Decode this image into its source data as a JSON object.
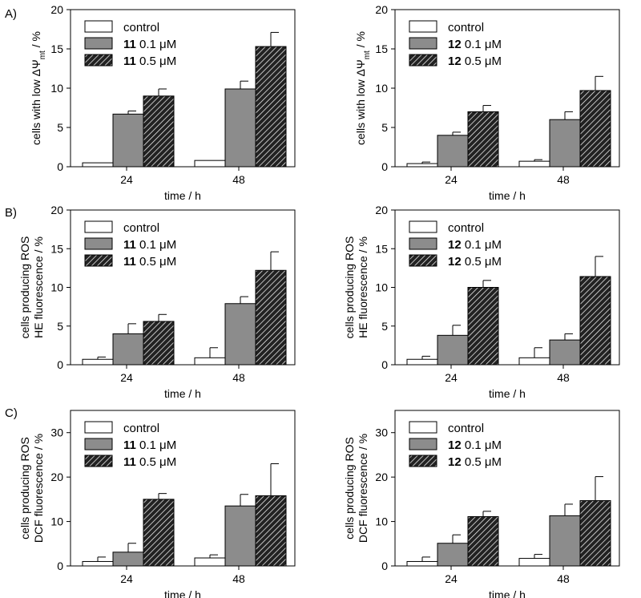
{
  "panel_labels": [
    "A)",
    "B)",
    "C)"
  ],
  "legend_common": {
    "control": "control",
    "unit": "μM"
  },
  "chart_data": [
    {
      "type": "bar",
      "panel": "A)",
      "compound": "11",
      "title": "",
      "xlabel": "time / h",
      "ylabel": {
        "lines": [
          "cells with low ΔΨmt / %"
        ],
        "prefix": "cells with low ΔΨ",
        "sub": "mt",
        "suffix": " / %"
      },
      "ylim": [
        0,
        20
      ],
      "yticks": [
        0,
        5,
        10,
        15,
        20
      ],
      "categories": [
        "24",
        "48"
      ],
      "series": [
        {
          "name": "control",
          "label": "control",
          "dose": "",
          "values": [
            0.5,
            0.8
          ],
          "errors": [
            0,
            0
          ]
        },
        {
          "name": "11 0.1 μM",
          "label": "11",
          "dose": "0.1",
          "values": [
            6.7,
            9.9
          ],
          "errors": [
            0.4,
            1.0
          ]
        },
        {
          "name": "11 0.5 μM",
          "label": "11",
          "dose": "0.5",
          "values": [
            9.0,
            15.3
          ],
          "errors": [
            0.9,
            1.8
          ]
        }
      ],
      "legend_position": "top-left"
    },
    {
      "type": "bar",
      "panel": "",
      "compound": "12",
      "title": "",
      "xlabel": "time / h",
      "ylabel": {
        "lines": [
          "cells with low ΔΨmt / %"
        ],
        "prefix": "cells with low ΔΨ",
        "sub": "mt",
        "suffix": " / %"
      },
      "ylim": [
        0,
        20
      ],
      "yticks": [
        0,
        5,
        10,
        15,
        20
      ],
      "categories": [
        "24",
        "48"
      ],
      "series": [
        {
          "name": "control",
          "label": "control",
          "dose": "",
          "values": [
            0.4,
            0.7
          ],
          "errors": [
            0.2,
            0.2
          ]
        },
        {
          "name": "12 0.1 μM",
          "label": "12",
          "dose": "0.1",
          "values": [
            4.0,
            6.0
          ],
          "errors": [
            0.4,
            1.0
          ]
        },
        {
          "name": "12 0.5 μM",
          "label": "12",
          "dose": "0.5",
          "values": [
            7.0,
            9.7
          ],
          "errors": [
            0.8,
            1.8
          ]
        }
      ],
      "legend_position": "top-left"
    },
    {
      "type": "bar",
      "panel": "B)",
      "compound": "11",
      "title": "",
      "xlabel": "time / h",
      "ylabel": {
        "lines": [
          "cells producing ROS",
          "HE fluorescence / %"
        ]
      },
      "ylim": [
        0,
        20
      ],
      "yticks": [
        0,
        5,
        10,
        15,
        20
      ],
      "categories": [
        "24",
        "48"
      ],
      "series": [
        {
          "name": "control",
          "label": "control",
          "dose": "",
          "values": [
            0.7,
            0.9
          ],
          "errors": [
            0.3,
            1.3
          ]
        },
        {
          "name": "11 0.1 μM",
          "label": "11",
          "dose": "0.1",
          "values": [
            4.0,
            7.9
          ],
          "errors": [
            1.3,
            0.9
          ]
        },
        {
          "name": "11 0.5 μM",
          "label": "11",
          "dose": "0.5",
          "values": [
            5.6,
            12.2
          ],
          "errors": [
            0.9,
            2.4
          ]
        }
      ],
      "legend_position": "top-left"
    },
    {
      "type": "bar",
      "panel": "",
      "compound": "12",
      "title": "",
      "xlabel": "time / h",
      "ylabel": {
        "lines": [
          "cells producing ROS",
          "HE fluorescence / %"
        ]
      },
      "ylim": [
        0,
        20
      ],
      "yticks": [
        0,
        5,
        10,
        15,
        20
      ],
      "categories": [
        "24",
        "48"
      ],
      "series": [
        {
          "name": "control",
          "label": "control",
          "dose": "",
          "values": [
            0.7,
            0.9
          ],
          "errors": [
            0.4,
            1.3
          ]
        },
        {
          "name": "12 0.1 μM",
          "label": "12",
          "dose": "0.1",
          "values": [
            3.8,
            3.2
          ],
          "errors": [
            1.3,
            0.8
          ]
        },
        {
          "name": "12 0.5 μM",
          "label": "12",
          "dose": "0.5",
          "values": [
            10.0,
            11.4
          ],
          "errors": [
            0.9,
            2.6
          ]
        }
      ],
      "legend_position": "top-left"
    },
    {
      "type": "bar",
      "panel": "C)",
      "compound": "11",
      "title": "",
      "xlabel": "time / h",
      "ylabel": {
        "lines": [
          "cells producing ROS",
          "DCF fluorescence / %"
        ]
      },
      "ylim": [
        0,
        35
      ],
      "yticks": [
        0,
        10,
        20,
        30
      ],
      "categories": [
        "24",
        "48"
      ],
      "series": [
        {
          "name": "control",
          "label": "control",
          "dose": "",
          "values": [
            1.0,
            1.8
          ],
          "errors": [
            1.0,
            0.7
          ]
        },
        {
          "name": "11 0.1 μM",
          "label": "11",
          "dose": "0.1",
          "values": [
            3.1,
            13.5
          ],
          "errors": [
            2.0,
            2.6
          ]
        },
        {
          "name": "11 0.5 μM",
          "label": "11",
          "dose": "0.5",
          "values": [
            15.0,
            15.8
          ],
          "errors": [
            1.3,
            7.2
          ]
        }
      ],
      "legend_position": "top-left"
    },
    {
      "type": "bar",
      "panel": "",
      "compound": "12",
      "title": "",
      "xlabel": "time / h",
      "ylabel": {
        "lines": [
          "cells producing ROS",
          "DCF fluorescence / %"
        ]
      },
      "ylim": [
        0,
        35
      ],
      "yticks": [
        0,
        10,
        20,
        30
      ],
      "categories": [
        "24",
        "48"
      ],
      "series": [
        {
          "name": "control",
          "label": "control",
          "dose": "",
          "values": [
            1.0,
            1.7
          ],
          "errors": [
            1.0,
            0.9
          ]
        },
        {
          "name": "12 0.1 μM",
          "label": "12",
          "dose": "0.1",
          "values": [
            5.1,
            11.3
          ],
          "errors": [
            1.9,
            2.6
          ]
        },
        {
          "name": "12 0.5 μM",
          "label": "12",
          "dose": "0.5",
          "values": [
            11.1,
            14.7
          ],
          "errors": [
            1.2,
            5.4
          ]
        }
      ],
      "legend_position": "top-left"
    }
  ]
}
